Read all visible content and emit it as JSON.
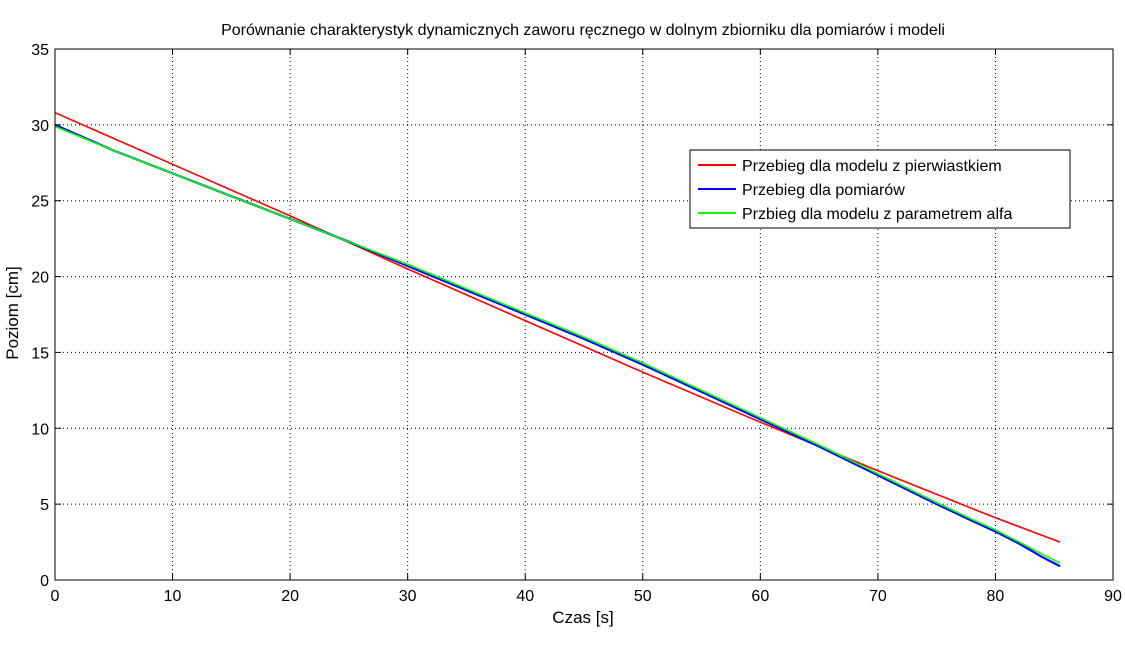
{
  "chart_data": {
    "type": "line",
    "title": "Porównanie charakterystyk dynamicznych zaworu ręcznego w dolnym zbiorniku dla pomiarów i modeli",
    "xlabel": "Czas [s]",
    "ylabel": "Poziom [cm]",
    "xlim": [
      0,
      90
    ],
    "ylim": [
      0,
      35
    ],
    "xticks": [
      0,
      10,
      20,
      30,
      40,
      50,
      60,
      70,
      80,
      90
    ],
    "yticks": [
      0,
      5,
      10,
      15,
      20,
      25,
      30,
      35
    ],
    "grid": true,
    "legend_position": "top-right",
    "series": [
      {
        "name": "Przebieg dla modelu z pierwiastkiem",
        "color": "#ff0000",
        "x": [
          0,
          10,
          20,
          30,
          40,
          50,
          60,
          70,
          80,
          85.5
        ],
        "y": [
          30.8,
          27.4,
          24.0,
          20.5,
          17.1,
          13.7,
          10.4,
          7.2,
          4.1,
          2.5
        ]
      },
      {
        "name": "Przebieg dla pomiarów",
        "color": "#0000ff",
        "x": [
          0,
          5,
          10,
          15,
          20,
          25,
          30,
          35,
          40,
          45,
          50,
          55,
          60,
          65,
          70,
          75,
          78,
          80,
          82,
          84,
          85.5
        ],
        "y": [
          30.0,
          28.3,
          26.8,
          25.3,
          23.8,
          22.3,
          20.7,
          19.1,
          17.5,
          15.9,
          14.2,
          12.4,
          10.6,
          8.8,
          6.9,
          5.0,
          3.9,
          3.2,
          2.4,
          1.5,
          0.9
        ]
      },
      {
        "name": "Przbieg dla modelu z parametrem alfa",
        "color": "#00ff00",
        "x": [
          0,
          5,
          10,
          15,
          20,
          25,
          30,
          35,
          40,
          45,
          50,
          55,
          60,
          65,
          70,
          75,
          78,
          80,
          82,
          84,
          85.5
        ],
        "y": [
          29.9,
          28.3,
          26.8,
          25.3,
          23.8,
          22.3,
          20.8,
          19.2,
          17.6,
          16.0,
          14.3,
          12.5,
          10.7,
          8.9,
          7.0,
          5.1,
          4.0,
          3.3,
          2.5,
          1.7,
          1.1
        ]
      }
    ]
  }
}
